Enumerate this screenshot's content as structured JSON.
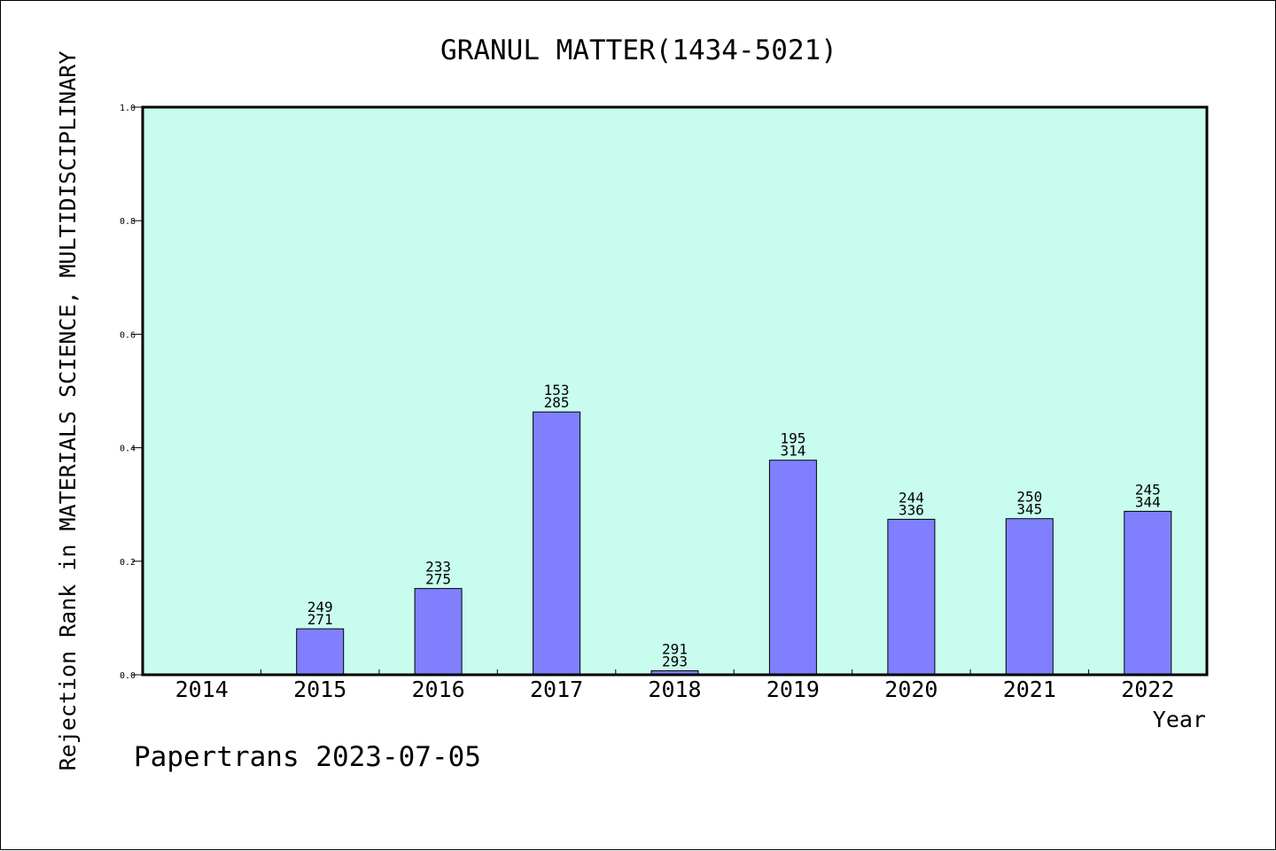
{
  "chart_data": {
    "type": "bar",
    "title": "GRANUL MATTER(1434-5021)",
    "xlabel": "Year",
    "ylabel": "Rejection Rank in MATERIALS SCIENCE, MULTIDISCIPLINARY",
    "ylim": [
      0.0,
      1.0
    ],
    "yticks": [
      "0.0",
      "0.2",
      "0.4",
      "0.6",
      "0.8",
      "1.0"
    ],
    "categories": [
      "2014",
      "2015",
      "2016",
      "2017",
      "2018",
      "2019",
      "2020",
      "2021",
      "2022"
    ],
    "values": [
      0,
      0.081,
      0.152,
      0.463,
      0.007,
      0.378,
      0.274,
      0.275,
      0.288
    ],
    "labels_top": [
      "",
      "249",
      "233",
      "153",
      "291",
      "195",
      "244",
      "250",
      "245"
    ],
    "labels_bottom": [
      "",
      "271",
      "275",
      "285",
      "293",
      "314",
      "336",
      "345",
      "344"
    ],
    "grid": false,
    "bar_color": "#8080ff",
    "plot_background": "#c8fcee",
    "footer": "Papertrans 2023-07-05"
  }
}
